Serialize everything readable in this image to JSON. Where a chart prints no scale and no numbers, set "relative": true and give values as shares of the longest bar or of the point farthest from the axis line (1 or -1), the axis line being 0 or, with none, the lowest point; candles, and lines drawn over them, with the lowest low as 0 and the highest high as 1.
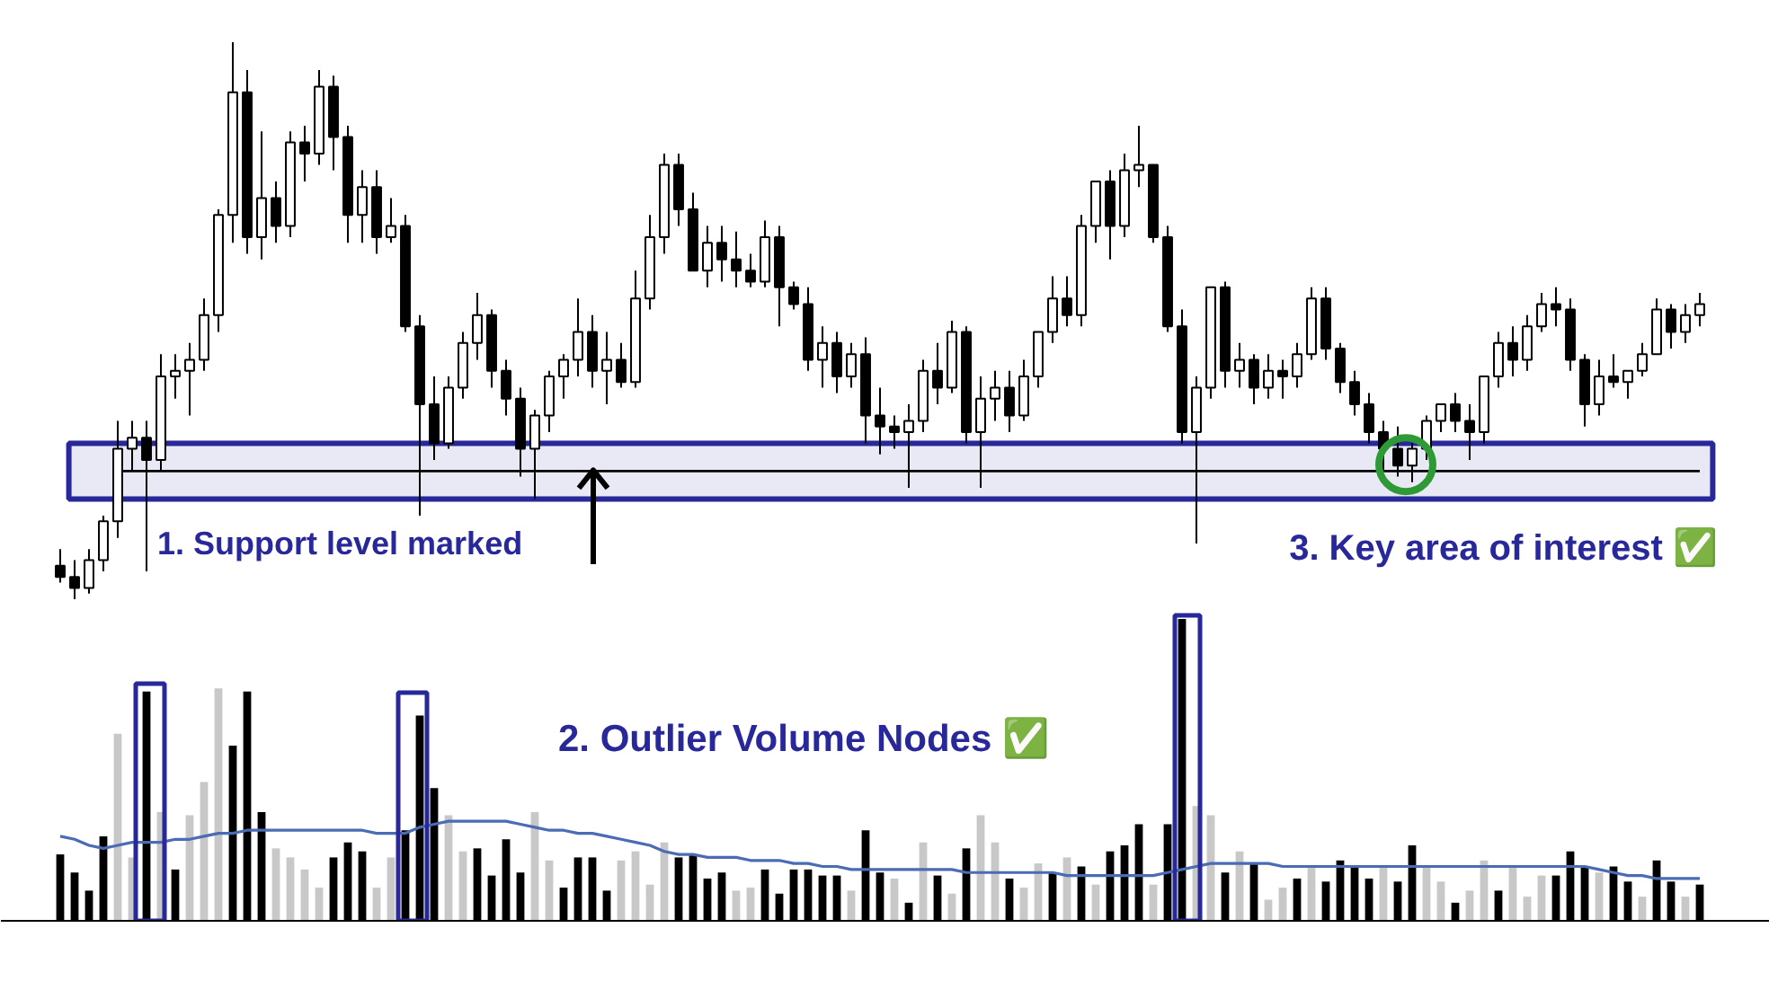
{
  "chart_data": [
    {
      "type": "candlestick",
      "relative": true,
      "color": "#000000",
      "categories": [
        null,
        null,
        null,
        null,
        null,
        null,
        null,
        null,
        null,
        null,
        null,
        null,
        null,
        null,
        null,
        null,
        null,
        null,
        null,
        null,
        null,
        null,
        null,
        null,
        null,
        null,
        null,
        null,
        null,
        null,
        null,
        null,
        null,
        null,
        null,
        null,
        null,
        null,
        null,
        null,
        null,
        null,
        null,
        null,
        null,
        null,
        null,
        null,
        null,
        null,
        null,
        null,
        null,
        null,
        null,
        null,
        null,
        null,
        null,
        null,
        null,
        null,
        null,
        null,
        null,
        null,
        null,
        null,
        null,
        null,
        null,
        null,
        null,
        null,
        null,
        null,
        null,
        null,
        null,
        null,
        null,
        null,
        null,
        null,
        null,
        null,
        null,
        null,
        null,
        null,
        null,
        null,
        null,
        null,
        null,
        null,
        null,
        null,
        null,
        null,
        null,
        null,
        null,
        null,
        null,
        null,
        null,
        null,
        null,
        null,
        null,
        null,
        null,
        null,
        null
      ],
      "ohlc": [
        [
          0.06,
          0.09,
          0.03,
          0.04
        ],
        [
          0.04,
          0.07,
          0,
          0.02
        ],
        [
          0.02,
          0.09,
          0.01,
          0.07
        ],
        [
          0.07,
          0.15,
          0.05,
          0.14
        ],
        [
          0.14,
          0.32,
          0.11,
          0.27
        ],
        [
          0.27,
          0.32,
          0.23,
          0.29
        ],
        [
          0.29,
          0.32,
          0.05,
          0.25
        ],
        [
          0.25,
          0.44,
          0.23,
          0.4
        ],
        [
          0.4,
          0.44,
          0.36,
          0.41
        ],
        [
          0.41,
          0.46,
          0.33,
          0.43
        ],
        [
          0.43,
          0.54,
          0.41,
          0.51
        ],
        [
          0.51,
          0.7,
          0.48,
          0.69
        ],
        [
          0.69,
          1.0,
          0.64,
          0.91
        ],
        [
          0.91,
          0.95,
          0.62,
          0.65
        ],
        [
          0.65,
          0.84,
          0.61,
          0.72
        ],
        [
          0.72,
          0.75,
          0.64,
          0.67
        ],
        [
          0.67,
          0.84,
          0.65,
          0.82
        ],
        [
          0.82,
          0.85,
          0.75,
          0.8
        ],
        [
          0.8,
          0.95,
          0.78,
          0.92
        ],
        [
          0.92,
          0.94,
          0.77,
          0.83
        ],
        [
          0.83,
          0.85,
          0.64,
          0.69
        ],
        [
          0.69,
          0.77,
          0.64,
          0.74
        ],
        [
          0.74,
          0.77,
          0.62,
          0.65
        ],
        [
          0.65,
          0.72,
          0.64,
          0.67
        ],
        [
          0.67,
          0.69,
          0.48,
          0.49
        ],
        [
          0.49,
          0.51,
          0.15,
          0.35
        ],
        [
          0.35,
          0.4,
          0.25,
          0.28
        ],
        [
          0.28,
          0.4,
          0.27,
          0.38
        ],
        [
          0.38,
          0.48,
          0.36,
          0.46
        ],
        [
          0.46,
          0.55,
          0.43,
          0.51
        ],
        [
          0.51,
          0.52,
          0.38,
          0.41
        ],
        [
          0.41,
          0.43,
          0.33,
          0.36
        ],
        [
          0.36,
          0.38,
          0.22,
          0.27
        ],
        [
          0.27,
          0.34,
          0.18,
          0.33
        ],
        [
          0.33,
          0.41,
          0.3,
          0.4
        ],
        [
          0.4,
          0.44,
          0.36,
          0.43
        ],
        [
          0.43,
          0.54,
          0.4,
          0.48
        ],
        [
          0.48,
          0.51,
          0.38,
          0.41
        ],
        [
          0.41,
          0.48,
          0.35,
          0.43
        ],
        [
          0.43,
          0.46,
          0.38,
          0.39
        ],
        [
          0.39,
          0.59,
          0.38,
          0.54
        ],
        [
          0.54,
          0.69,
          0.52,
          0.65
        ],
        [
          0.65,
          0.8,
          0.62,
          0.78
        ],
        [
          0.78,
          0.8,
          0.67,
          0.7
        ],
        [
          0.7,
          0.73,
          0.59,
          0.59
        ],
        [
          0.59,
          0.67,
          0.56,
          0.64
        ],
        [
          0.64,
          0.67,
          0.57,
          0.61
        ],
        [
          0.61,
          0.66,
          0.56,
          0.59
        ],
        [
          0.59,
          0.62,
          0.56,
          0.57
        ],
        [
          0.57,
          0.68,
          0.56,
          0.65
        ],
        [
          0.65,
          0.67,
          0.49,
          0.56
        ],
        [
          0.56,
          0.57,
          0.52,
          0.53
        ],
        [
          0.53,
          0.56,
          0.41,
          0.43
        ],
        [
          0.43,
          0.49,
          0.38,
          0.46
        ],
        [
          0.46,
          0.48,
          0.37,
          0.4
        ],
        [
          0.4,
          0.46,
          0.38,
          0.44
        ],
        [
          0.44,
          0.47,
          0.28,
          0.33
        ],
        [
          0.33,
          0.38,
          0.26,
          0.31
        ],
        [
          0.31,
          0.33,
          0.27,
          0.3
        ],
        [
          0.3,
          0.35,
          0.2,
          0.32
        ],
        [
          0.32,
          0.43,
          0.3,
          0.41
        ],
        [
          0.41,
          0.46,
          0.35,
          0.38
        ],
        [
          0.38,
          0.5,
          0.37,
          0.48
        ],
        [
          0.48,
          0.49,
          0.28,
          0.3
        ],
        [
          0.3,
          0.4,
          0.2,
          0.36
        ],
        [
          0.36,
          0.41,
          0.32,
          0.38
        ],
        [
          0.38,
          0.41,
          0.3,
          0.33
        ],
        [
          0.33,
          0.43,
          0.32,
          0.4
        ],
        [
          0.4,
          0.48,
          0.38,
          0.48
        ],
        [
          0.48,
          0.58,
          0.46,
          0.54
        ],
        [
          0.54,
          0.58,
          0.49,
          0.51
        ],
        [
          0.51,
          0.69,
          0.49,
          0.67
        ],
        [
          0.67,
          0.75,
          0.64,
          0.75
        ],
        [
          0.75,
          0.77,
          0.61,
          0.67
        ],
        [
          0.67,
          0.8,
          0.65,
          0.77
        ],
        [
          0.77,
          0.85,
          0.74,
          0.78
        ],
        [
          0.78,
          0.78,
          0.64,
          0.65
        ],
        [
          0.65,
          0.67,
          0.48,
          0.49
        ],
        [
          0.49,
          0.52,
          0.28,
          0.3
        ],
        [
          0.3,
          0.4,
          0.1,
          0.38
        ],
        [
          0.38,
          0.56,
          0.36,
          0.56
        ],
        [
          0.56,
          0.57,
          0.38,
          0.41
        ],
        [
          0.41,
          0.46,
          0.38,
          0.43
        ],
        [
          0.43,
          0.44,
          0.35,
          0.38
        ],
        [
          0.38,
          0.44,
          0.36,
          0.41
        ],
        [
          0.41,
          0.43,
          0.36,
          0.4
        ],
        [
          0.4,
          0.46,
          0.38,
          0.44
        ],
        [
          0.44,
          0.56,
          0.43,
          0.54
        ],
        [
          0.54,
          0.56,
          0.43,
          0.45
        ],
        [
          0.45,
          0.46,
          0.37,
          0.39
        ],
        [
          0.39,
          0.41,
          0.33,
          0.35
        ],
        [
          0.35,
          0.37,
          0.28,
          0.3
        ],
        [
          0.3,
          0.32,
          0.23,
          0.27
        ],
        [
          0.27,
          0.31,
          0.22,
          0.24
        ],
        [
          0.24,
          0.28,
          0.21,
          0.27
        ],
        [
          0.27,
          0.33,
          0.25,
          0.32
        ],
        [
          0.32,
          0.35,
          0.3,
          0.35
        ],
        [
          0.35,
          0.37,
          0.3,
          0.32
        ],
        [
          0.32,
          0.35,
          0.25,
          0.3
        ],
        [
          0.3,
          0.4,
          0.28,
          0.4
        ],
        [
          0.4,
          0.48,
          0.38,
          0.46
        ],
        [
          0.46,
          0.49,
          0.4,
          0.43
        ],
        [
          0.43,
          0.51,
          0.41,
          0.49
        ],
        [
          0.49,
          0.55,
          0.48,
          0.53
        ],
        [
          0.53,
          0.56,
          0.49,
          0.52
        ],
        [
          0.52,
          0.54,
          0.41,
          0.43
        ],
        [
          0.43,
          0.44,
          0.31,
          0.35
        ],
        [
          0.35,
          0.43,
          0.33,
          0.4
        ],
        [
          0.4,
          0.44,
          0.38,
          0.39
        ],
        [
          0.39,
          0.41,
          0.36,
          0.41
        ],
        [
          0.41,
          0.46,
          0.4,
          0.44
        ],
        [
          0.44,
          0.54,
          0.44,
          0.52
        ],
        [
          0.52,
          0.53,
          0.45,
          0.48
        ],
        [
          0.48,
          0.53,
          0.46,
          0.51
        ],
        [
          0.51,
          0.55,
          0.49,
          0.53
        ]
      ],
      "bands": [
        {
          "axis": "y",
          "from": 0.18,
          "to": 0.28,
          "color": "#28289a"
        }
      ],
      "ref_lines": [
        {
          "axis": "y",
          "value": 0.23,
          "color": "#000000"
        }
      ],
      "annotations": [
        {
          "text": "1. Support level marked",
          "y": 0.23
        },
        {
          "text": "3. Key area of interest ✅",
          "y": 0.24
        }
      ]
    },
    {
      "type": "bar",
      "relative": true,
      "categories": [
        null,
        null,
        null,
        null,
        null,
        null,
        null,
        null,
        null,
        null,
        null,
        null,
        null,
        null,
        null,
        null,
        null,
        null,
        null,
        null,
        null,
        null,
        null,
        null,
        null,
        null,
        null,
        null,
        null,
        null,
        null,
        null,
        null,
        null,
        null,
        null,
        null,
        null,
        null,
        null,
        null,
        null,
        null,
        null,
        null,
        null,
        null,
        null,
        null,
        null,
        null,
        null,
        null,
        null,
        null,
        null,
        null,
        null,
        null,
        null,
        null,
        null,
        null,
        null,
        null,
        null,
        null,
        null,
        null,
        null,
        null,
        null,
        null,
        null,
        null,
        null,
        null,
        null,
        null,
        null,
        null,
        null,
        null,
        null,
        null,
        null,
        null,
        null,
        null,
        null,
        null,
        null,
        null,
        null,
        null,
        null,
        null,
        null,
        null,
        null,
        null,
        null,
        null,
        null,
        null,
        null,
        null,
        null,
        null,
        null,
        null,
        null,
        null,
        null,
        null
      ],
      "series": [
        {
          "type": "bar",
          "values": [
            0.22,
            0.16,
            0.1,
            0.28,
            0.62,
            0.21,
            0.76,
            0.36,
            0.17,
            0.35,
            0.46,
            0.77,
            0.58,
            0.76,
            0.36,
            0.24,
            0.21,
            0.17,
            0.11,
            0.21,
            0.26,
            0.23,
            0.11,
            0.21,
            0.3,
            0.68,
            0.44,
            0.35,
            0.23,
            0.24,
            0.15,
            0.27,
            0.16,
            0.36,
            0.2,
            0.11,
            0.21,
            0.21,
            0.1,
            0.2,
            0.23,
            0.12,
            0.26,
            0.21,
            0.22,
            0.14,
            0.16,
            0.1,
            0.11,
            0.17,
            0.09,
            0.17,
            0.17,
            0.15,
            0.15,
            0.1,
            0.3,
            0.16,
            0.14,
            0.06,
            0.26,
            0.15,
            0.09,
            0.24,
            0.35,
            0.26,
            0.14,
            0.11,
            0.19,
            0.16,
            0.21,
            0.18,
            0.12,
            0.23,
            0.25,
            0.32,
            0.12,
            0.32,
            1.0,
            0.38,
            0.35,
            0.16,
            0.23,
            0.19,
            0.07,
            0.11,
            0.14,
            0.18,
            0.13,
            0.2,
            0.18,
            0.14,
            0.18,
            0.13,
            0.25,
            0.18,
            0.13,
            0.06,
            0.1,
            0.2,
            0.1,
            0.18,
            0.08,
            0.15,
            0.15,
            0.23,
            0.18,
            0.16,
            0.18,
            0.13,
            0.08,
            0.2,
            0.13,
            0.08,
            0.12
          ],
          "colors": [
            "#000000",
            "#000000",
            "#000000",
            "#000000",
            "#c8c8c8",
            "#c8c8c8",
            "#000000",
            "#c8c8c8",
            "#000000",
            "#c8c8c8",
            "#c8c8c8",
            "#c8c8c8",
            "#000000",
            "#000000",
            "#000000",
            "#c8c8c8",
            "#c8c8c8",
            "#c8c8c8",
            "#c8c8c8",
            "#000000",
            "#000000",
            "#000000",
            "#c8c8c8",
            "#c8c8c8",
            "#000000",
            "#000000",
            "#000000",
            "#c8c8c8",
            "#c8c8c8",
            "#000000",
            "#000000",
            "#000000",
            "#000000",
            "#c8c8c8",
            "#c8c8c8",
            "#000000",
            "#000000",
            "#000000",
            "#000000",
            "#c8c8c8",
            "#c8c8c8",
            "#c8c8c8",
            "#c8c8c8",
            "#000000",
            "#000000",
            "#000000",
            "#000000",
            "#c8c8c8",
            "#c8c8c8",
            "#000000",
            "#000000",
            "#000000",
            "#000000",
            "#000000",
            "#000000",
            "#c8c8c8",
            "#000000",
            "#000000",
            "#c8c8c8",
            "#000000",
            "#c8c8c8",
            "#000000",
            "#c8c8c8",
            "#000000",
            "#c8c8c8",
            "#c8c8c8",
            "#000000",
            "#c8c8c8",
            "#c8c8c8",
            "#000000",
            "#c8c8c8",
            "#000000",
            "#c8c8c8",
            "#000000",
            "#000000",
            "#000000",
            "#c8c8c8",
            "#000000",
            "#000000",
            "#c8c8c8",
            "#c8c8c8",
            "#000000",
            "#c8c8c8",
            "#000000",
            "#c8c8c8",
            "#c8c8c8",
            "#000000",
            "#c8c8c8",
            "#000000",
            "#000000",
            "#000000",
            "#000000",
            "#c8c8c8",
            "#000000",
            "#000000",
            "#c8c8c8",
            "#c8c8c8",
            "#000000",
            "#c8c8c8",
            "#c8c8c8",
            "#000000",
            "#c8c8c8",
            "#c8c8c8",
            "#c8c8c8",
            "#000000",
            "#000000",
            "#000000",
            "#c8c8c8",
            "#000000",
            "#000000",
            "#c8c8c8",
            "#000000",
            "#000000",
            "#c8c8c8",
            "#000000"
          ]
        },
        {
          "type": "line",
          "color": "#4a6cb5",
          "values": [
            0.28,
            0.27,
            0.25,
            0.24,
            0.25,
            0.26,
            0.26,
            0.26,
            0.27,
            0.27,
            0.28,
            0.29,
            0.29,
            0.3,
            0.3,
            0.3,
            0.3,
            0.3,
            0.3,
            0.3,
            0.3,
            0.3,
            0.29,
            0.29,
            0.29,
            0.31,
            0.32,
            0.33,
            0.33,
            0.33,
            0.33,
            0.33,
            0.32,
            0.31,
            0.3,
            0.3,
            0.29,
            0.29,
            0.28,
            0.27,
            0.26,
            0.25,
            0.23,
            0.22,
            0.22,
            0.21,
            0.21,
            0.21,
            0.2,
            0.2,
            0.2,
            0.19,
            0.19,
            0.18,
            0.18,
            0.17,
            0.17,
            0.17,
            0.17,
            0.17,
            0.17,
            0.17,
            0.17,
            0.16,
            0.16,
            0.16,
            0.16,
            0.16,
            0.16,
            0.16,
            0.15,
            0.15,
            0.15,
            0.15,
            0.15,
            0.15,
            0.15,
            0.16,
            0.17,
            0.18,
            0.19,
            0.19,
            0.19,
            0.19,
            0.19,
            0.18,
            0.18,
            0.18,
            0.18,
            0.18,
            0.18,
            0.18,
            0.18,
            0.18,
            0.18,
            0.18,
            0.18,
            0.18,
            0.18,
            0.18,
            0.18,
            0.18,
            0.18,
            0.18,
            0.18,
            0.18,
            0.18,
            0.17,
            0.16,
            0.15,
            0.15,
            0.14,
            0.14,
            0.14,
            0.14
          ]
        }
      ],
      "annotations": [
        "2. Outlier Volume Nodes ✅"
      ]
    }
  ]
}
